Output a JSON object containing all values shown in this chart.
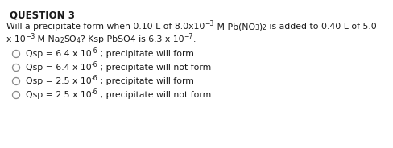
{
  "title": "QUESTION 3",
  "bg_color": "#ffffff",
  "text_color": "#1a1a1a",
  "title_fontsize": 8.5,
  "body_fontsize": 7.8,
  "sub_fontsize": 5.5,
  "options": [
    {
      "coeff": "6.4",
      "exp": "-6",
      "tail": "; precipitate will form"
    },
    {
      "coeff": "6.4",
      "exp": "-6",
      "tail": "; precipitate will not form"
    },
    {
      "coeff": "2.5",
      "exp": "-6",
      "tail": "; precipitate will form"
    },
    {
      "coeff": "2.5",
      "exp": "-6",
      "tail": "; precipitate will not form"
    }
  ],
  "line1_parts": [
    {
      "text": "Will a precipitate form when 0.10 L of 8.0x10",
      "type": "normal"
    },
    {
      "text": "−3",
      "type": "sup"
    },
    {
      "text": " M Pb(NO",
      "type": "normal"
    },
    {
      "text": "3",
      "type": "sub"
    },
    {
      "text": ")",
      "type": "normal"
    },
    {
      "text": "2",
      "type": "sub"
    },
    {
      "text": " is added to 0.40 L of 5.0",
      "type": "normal"
    }
  ],
  "line2_parts": [
    {
      "text": "x 10",
      "type": "normal"
    },
    {
      "text": "−3",
      "type": "sup"
    },
    {
      "text": " M Na",
      "type": "normal"
    },
    {
      "text": "2",
      "type": "sub"
    },
    {
      "text": "SO",
      "type": "normal"
    },
    {
      "text": "4",
      "type": "sub"
    },
    {
      "text": "? Ksp PbSO4 is 6.3 x 10",
      "type": "normal"
    },
    {
      "text": "−7",
      "type": "sup"
    },
    {
      "text": ".",
      "type": "normal"
    }
  ]
}
